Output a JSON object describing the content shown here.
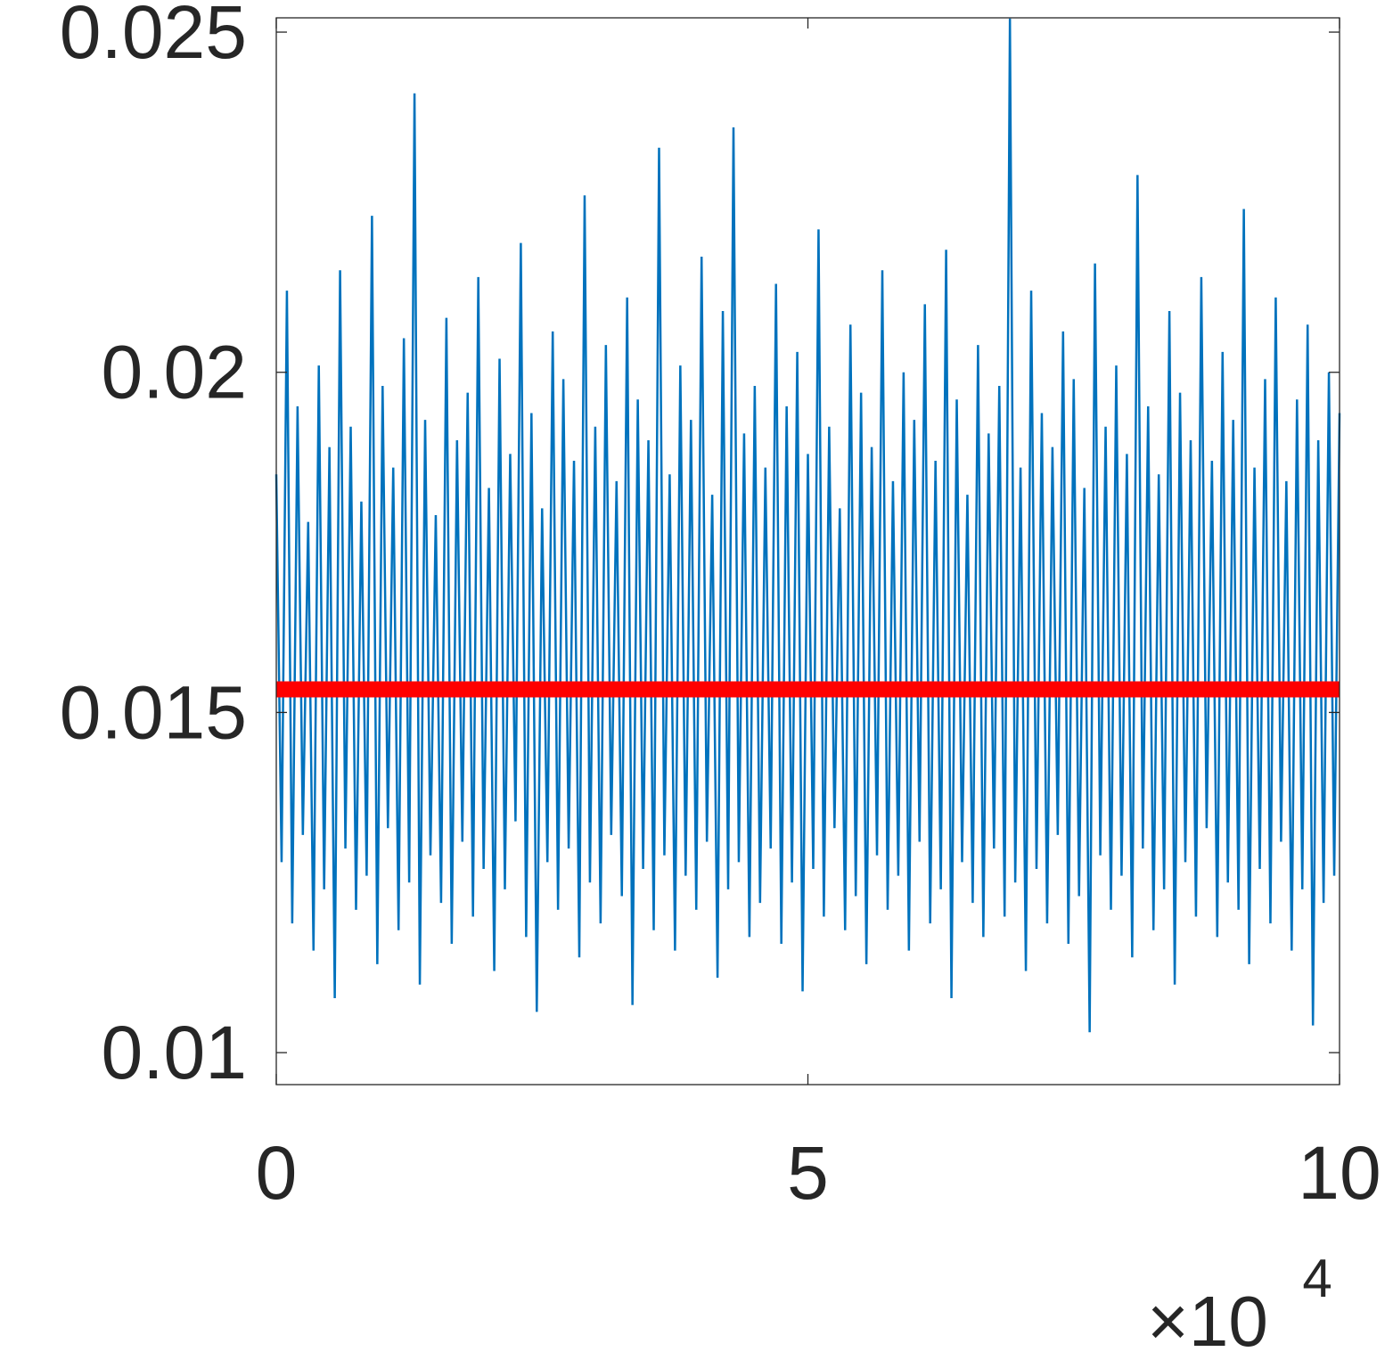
{
  "chart_data": {
    "type": "line",
    "x_multiplier": {
      "base": "×10",
      "exponent": "4"
    },
    "xlim": [
      0,
      100000
    ],
    "xticks": [
      {
        "value": 0,
        "label": "0"
      },
      {
        "value": 50000,
        "label": "5"
      },
      {
        "value": 100000,
        "label": "10"
      }
    ],
    "ylim": [
      0.00953,
      0.02521
    ],
    "yticks": [
      0.01,
      0.015,
      0.02,
      0.025
    ],
    "grid": false,
    "x": [
      0,
      500,
      1000,
      1500,
      2000,
      2500,
      3000,
      3500,
      4000,
      4500,
      5000,
      5500,
      6000,
      6500,
      7000,
      7500,
      8000,
      8500,
      9000,
      9500,
      10000,
      10500,
      11000,
      11500,
      12000,
      12500,
      13000,
      13500,
      14000,
      14500,
      15000,
      15500,
      16000,
      16500,
      17000,
      17500,
      18000,
      18500,
      19000,
      19500,
      20000,
      20500,
      21000,
      21500,
      22000,
      22500,
      23000,
      23500,
      24000,
      24500,
      25000,
      25500,
      26000,
      26500,
      27000,
      27500,
      28000,
      28500,
      29000,
      29500,
      30000,
      30500,
      31000,
      31500,
      32000,
      32500,
      33000,
      33500,
      34000,
      34500,
      35000,
      35500,
      36000,
      36500,
      37000,
      37500,
      38000,
      38500,
      39000,
      39500,
      40000,
      40500,
      41000,
      41500,
      42000,
      42500,
      43000,
      43500,
      44000,
      44500,
      45000,
      45500,
      46000,
      46500,
      47000,
      47500,
      48000,
      48500,
      49000,
      49500,
      50000,
      50500,
      51000,
      51500,
      52000,
      52500,
      53000,
      53500,
      54000,
      54500,
      55000,
      55500,
      56000,
      56500,
      57000,
      57500,
      58000,
      58500,
      59000,
      59500,
      60000,
      60500,
      61000,
      61500,
      62000,
      62500,
      63000,
      63500,
      64000,
      64500,
      65000,
      65500,
      66000,
      66500,
      67000,
      67500,
      68000,
      68500,
      69000,
      69500,
      70000,
      70500,
      71000,
      71500,
      72000,
      72500,
      73000,
      73500,
      74000,
      74500,
      75000,
      75500,
      76000,
      76500,
      77000,
      77500,
      78000,
      78500,
      79000,
      79500,
      80000,
      80500,
      81000,
      81500,
      82000,
      82500,
      83000,
      83500,
      84000,
      84500,
      85000,
      85500,
      86000,
      86500,
      87000,
      87500,
      88000,
      88500,
      89000,
      89500,
      90000,
      90500,
      91000,
      91500,
      92000,
      92500,
      93000,
      93500,
      94000,
      94500,
      95000,
      95500,
      96000,
      96500,
      97000,
      97500,
      98000,
      98500,
      99000,
      99500,
      100000
    ],
    "series": [
      {
        "color": "#0072bd",
        "width": 2.5,
        "values": [
          0.0185,
          0.0128,
          0.0212,
          0.0119,
          0.0195,
          0.0132,
          0.0178,
          0.0115,
          0.0201,
          0.0124,
          0.0189,
          0.0108,
          0.0215,
          0.013,
          0.0192,
          0.0121,
          0.0181,
          0.0126,
          0.0223,
          0.0113,
          0.0198,
          0.0133,
          0.0186,
          0.0118,
          0.0205,
          0.0125,
          0.0241,
          0.011,
          0.0193,
          0.0129,
          0.0179,
          0.0122,
          0.0208,
          0.0116,
          0.019,
          0.0131,
          0.0197,
          0.012,
          0.0214,
          0.0127,
          0.0183,
          0.0112,
          0.0202,
          0.0124,
          0.0188,
          0.0134,
          0.0219,
          0.0117,
          0.0194,
          0.0106,
          0.018,
          0.0128,
          0.0206,
          0.0121,
          0.0199,
          0.013,
          0.0187,
          0.0114,
          0.0226,
          0.0125,
          0.0192,
          0.0119,
          0.0204,
          0.0132,
          0.0184,
          0.0123,
          0.0211,
          0.0107,
          0.0196,
          0.0127,
          0.019,
          0.0118,
          0.0233,
          0.0129,
          0.0185,
          0.0115,
          0.0201,
          0.0126,
          0.0193,
          0.0121,
          0.0217,
          0.0131,
          0.0182,
          0.0111,
          0.0209,
          0.0124,
          0.0236,
          0.0128,
          0.0191,
          0.0117,
          0.0198,
          0.0122,
          0.0186,
          0.013,
          0.0213,
          0.0116,
          0.0195,
          0.0125,
          0.0203,
          0.0109,
          0.0188,
          0.0127,
          0.0221,
          0.012,
          0.0192,
          0.0133,
          0.018,
          0.0118,
          0.0207,
          0.0123,
          0.0197,
          0.0113,
          0.0189,
          0.0129,
          0.0215,
          0.0121,
          0.0184,
          0.0126,
          0.02,
          0.0115,
          0.0193,
          0.0131,
          0.021,
          0.0119,
          0.0187,
          0.0124,
          0.0218,
          0.0108,
          0.0196,
          0.0128,
          0.0182,
          0.0122,
          0.0204,
          0.0117,
          0.0191,
          0.013,
          0.0198,
          0.012,
          0.0252,
          0.0125,
          0.0186,
          0.0112,
          0.0212,
          0.0127,
          0.0194,
          0.0119,
          0.0189,
          0.0132,
          0.0206,
          0.0116,
          0.0199,
          0.0123,
          0.0183,
          0.0103,
          0.0216,
          0.0129,
          0.0192,
          0.0121,
          0.0201,
          0.0126,
          0.0188,
          0.0114,
          0.0229,
          0.013,
          0.0195,
          0.0118,
          0.0185,
          0.0124,
          0.0209,
          0.011,
          0.0197,
          0.0128,
          0.019,
          0.012,
          0.0214,
          0.0133,
          0.0187,
          0.0117,
          0.0203,
          0.0125,
          0.0193,
          0.0121,
          0.0224,
          0.0113,
          0.0186,
          0.0127,
          0.0199,
          0.0119,
          0.0211,
          0.0131,
          0.0184,
          0.0115,
          0.0196,
          0.0124,
          0.0207,
          0.0104,
          0.019,
          0.0122,
          0.02,
          0.0126,
          0.0194
        ]
      },
      {
        "color": "#ff0000",
        "width": 18,
        "x": [
          0,
          100000
        ],
        "values": [
          0.01534,
          0.01534
        ]
      }
    ]
  }
}
